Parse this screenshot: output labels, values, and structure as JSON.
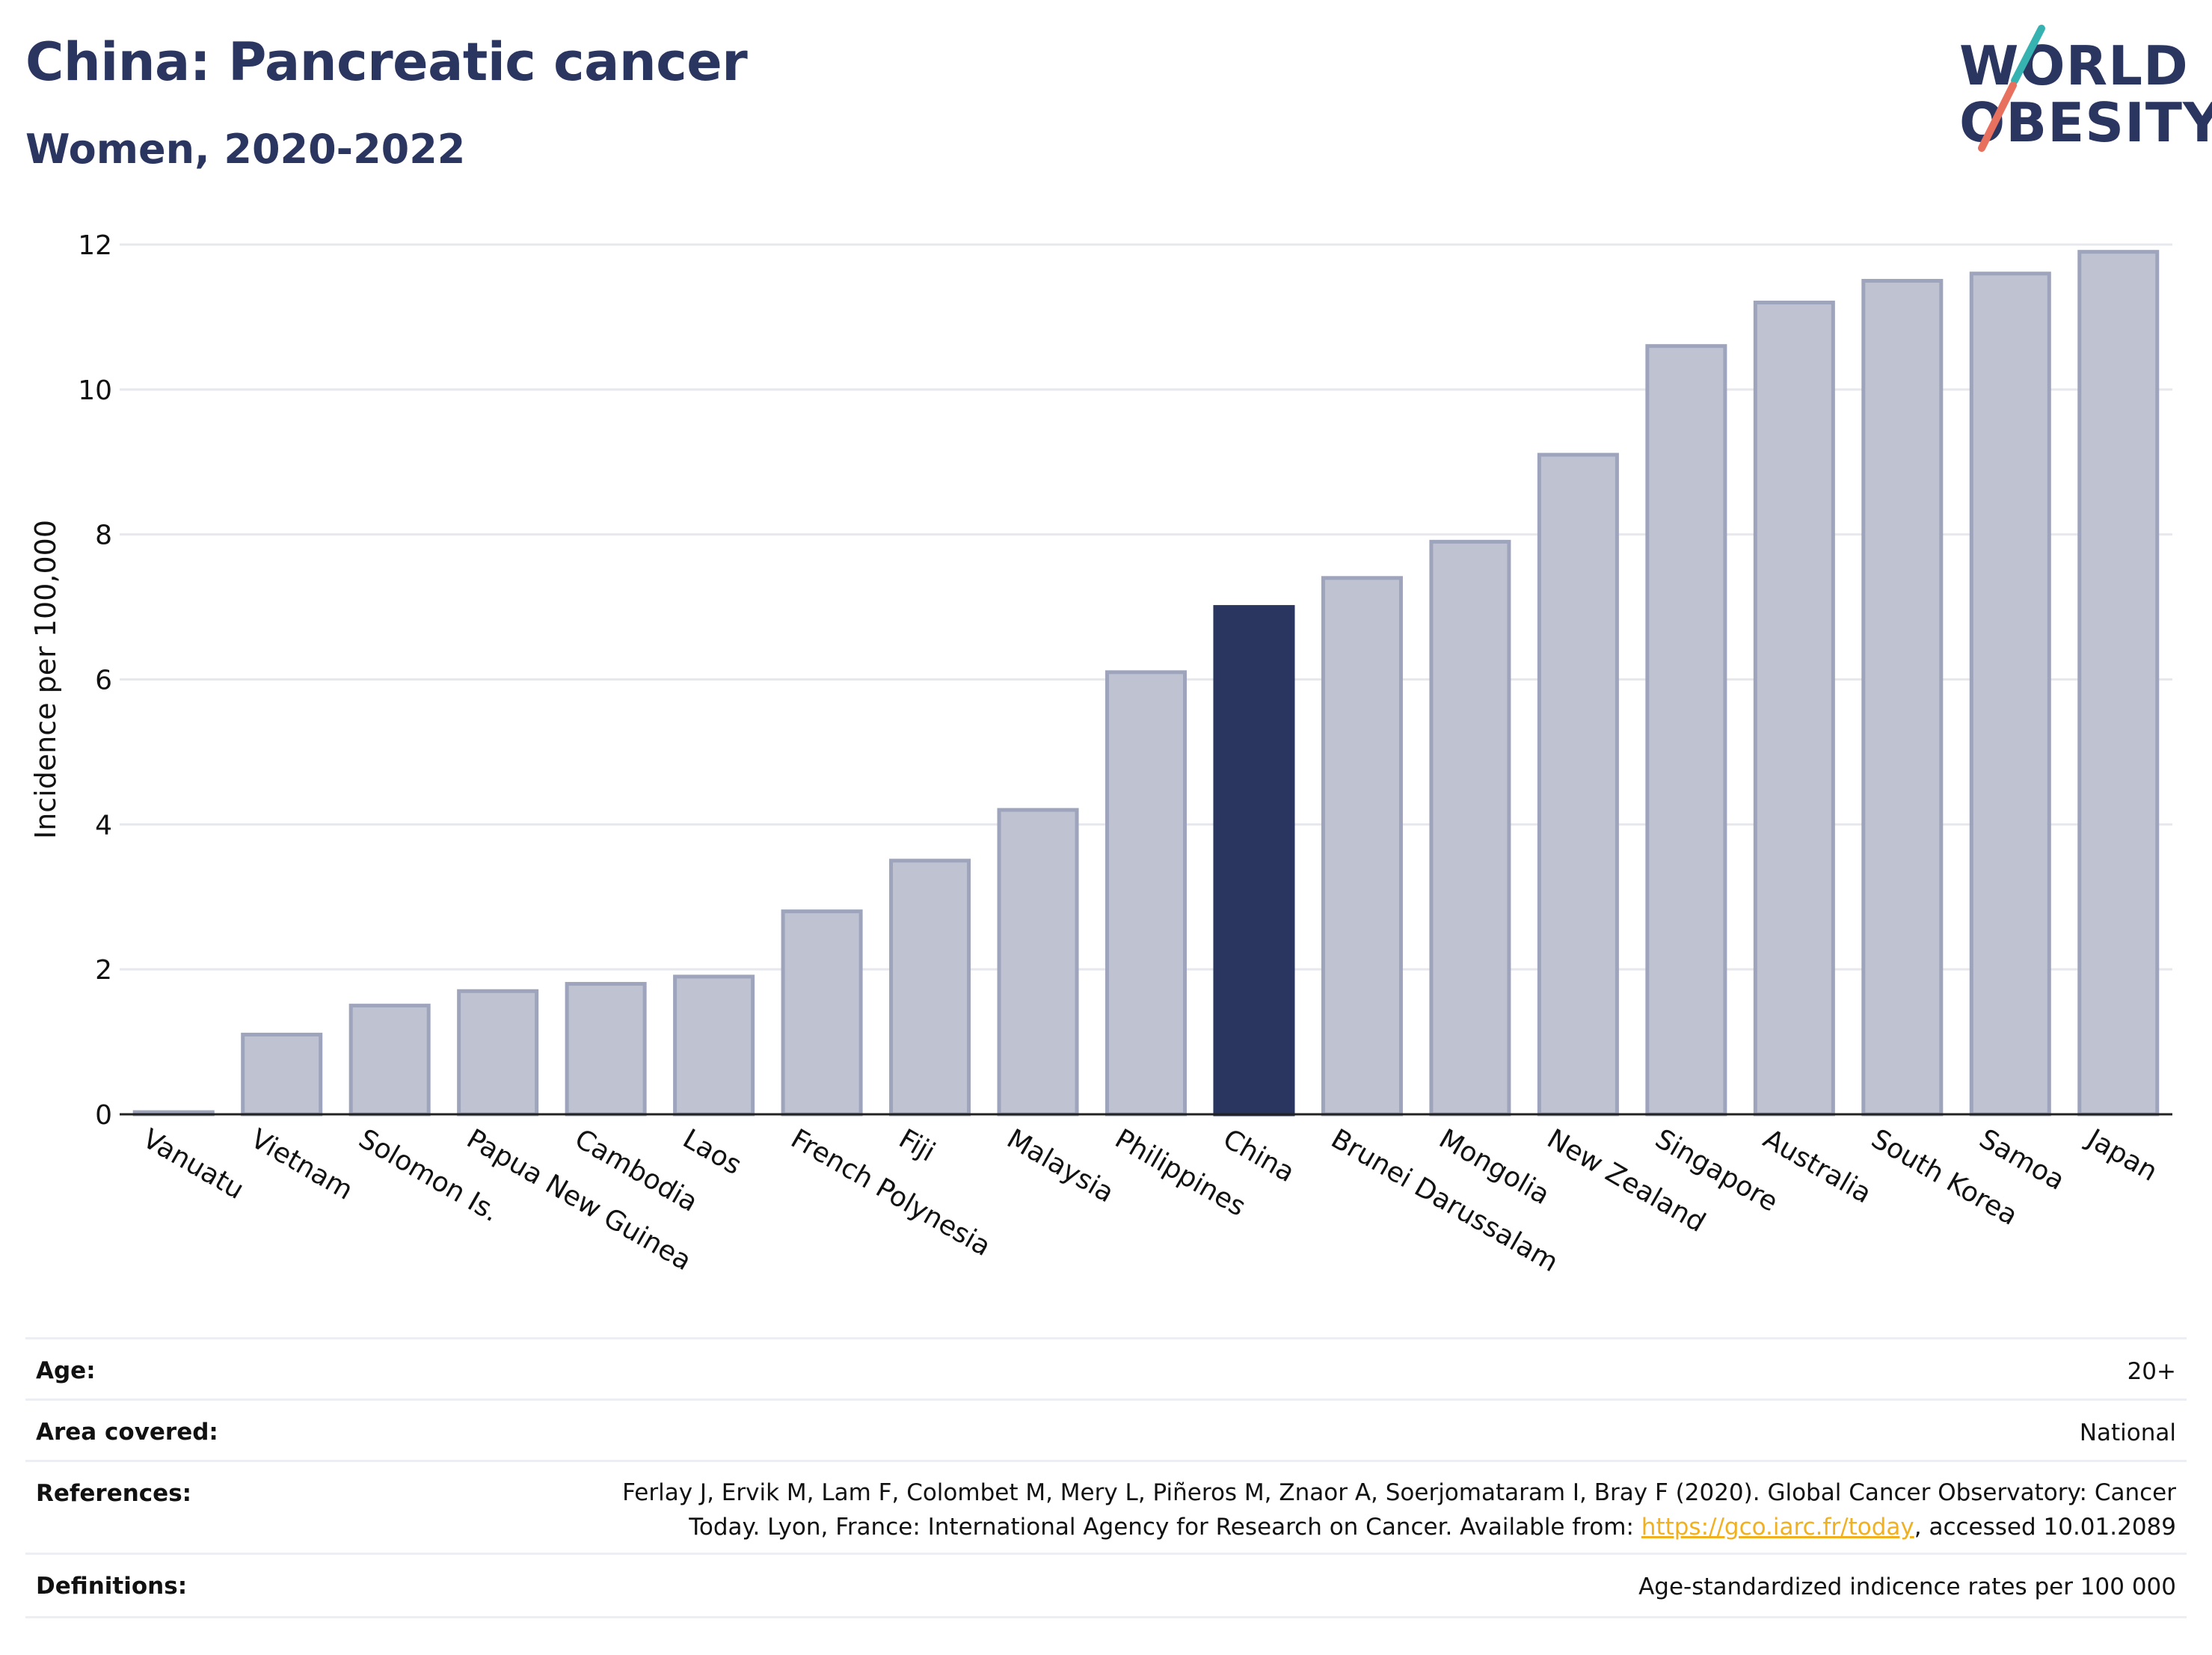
{
  "header": {
    "title": "China: Pancreatic cancer",
    "subtitle": "Women, 2020-2022"
  },
  "logo": {
    "line1": "WORLD",
    "line2": "OBESITY",
    "accent_teal": "#36b3b0",
    "accent_coral": "#e8705e"
  },
  "colors": {
    "bar_default": "#bfc3d1",
    "bar_default_edge": "#9ea4bb",
    "bar_highlight": "#2a3560",
    "text_dark": "#2a3560"
  },
  "chart_data": {
    "type": "bar",
    "ylabel": "Incidence per 100,000",
    "xlabel": "",
    "ylim": [
      0,
      12
    ],
    "yticks": [
      0,
      2,
      4,
      6,
      8,
      10,
      12
    ],
    "grid": true,
    "highlight": "China",
    "categories": [
      "Vanuatu",
      "Vietnam",
      "Solomon Is.",
      "Papua New Guinea",
      "Cambodia",
      "Laos",
      "French Polynesia",
      "Fiji",
      "Malaysia",
      "Philippines",
      "China",
      "Brunei Darussalam",
      "Mongolia",
      "New Zealand",
      "Singapore",
      "Australia",
      "South Korea",
      "Samoa",
      "Japan"
    ],
    "values": [
      0.03,
      1.1,
      1.5,
      1.7,
      1.8,
      1.9,
      2.8,
      3.5,
      4.2,
      6.1,
      7.0,
      7.4,
      7.9,
      9.1,
      10.6,
      11.2,
      11.5,
      11.6,
      11.9
    ]
  },
  "info": {
    "age": {
      "label": "Age:",
      "value": "20+"
    },
    "area": {
      "label": "Area covered:",
      "value": "National"
    },
    "references": {
      "label": "References:",
      "line1": "Ferlay J, Ervik M, Lam F, Colombet M, Mery L, Piñeros M, Znaor A, Soerjomataram I, Bray F (2020). Global Cancer Observatory: Cancer",
      "line2_prefix": "Today. Lyon, France: International Agency for Research on Cancer. Available from: ",
      "link": "https://gco.iarc.fr/today",
      "line2_suffix": ", accessed 10.01.2089"
    },
    "definitions": {
      "label": "Definitions:",
      "value": "Age-standardized indicence rates per 100 000"
    }
  }
}
